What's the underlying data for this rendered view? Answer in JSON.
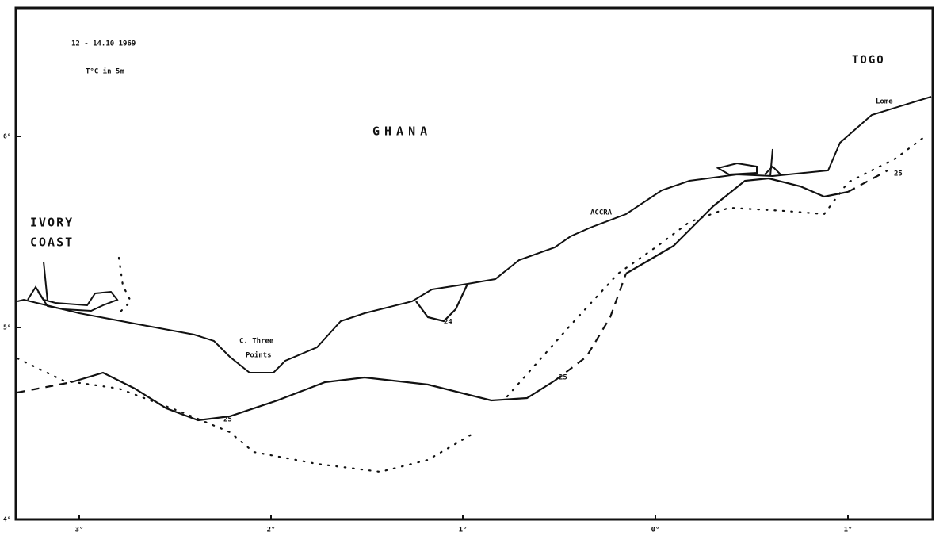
{
  "map": {
    "annotations": [
      "12 - 14.10 1969",
      "T°C in 5m"
    ],
    "places": [
      {
        "label": "GHANA"
      },
      {
        "label": "IVORY"
      },
      {
        "label": "COAST"
      },
      {
        "label": "TOGO"
      },
      {
        "label": "ACCRA"
      },
      {
        "label": "C. Three"
      },
      {
        "label": "Points"
      },
      {
        "label": "Lome"
      }
    ],
    "isotherm_labels": [
      "24",
      "25",
      "25",
      "25"
    ],
    "x_ticks": [
      "3°",
      "2°",
      "1°",
      "0°",
      "1°"
    ],
    "y_ticks": [
      "6°",
      "5°",
      "4°"
    ]
  }
}
